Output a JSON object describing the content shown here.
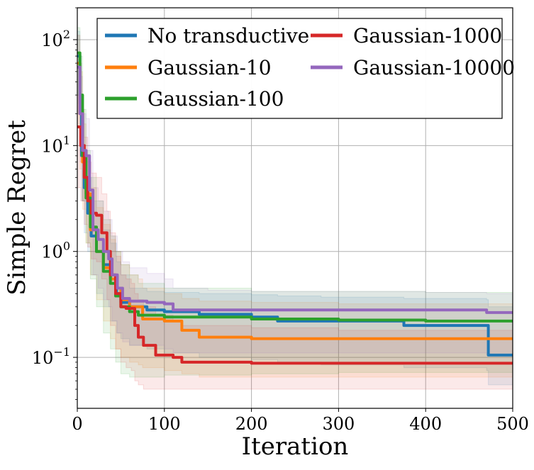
{
  "chart_data": {
    "type": "line",
    "xlabel": "Iteration",
    "ylabel": "Simple Regret",
    "xlim": [
      0,
      500
    ],
    "ylim": [
      0.033,
      200
    ],
    "yscale": "log",
    "grid": true,
    "legend": {
      "placement": "top-right",
      "columns": 2
    },
    "x_ticks": [
      {
        "value": 0,
        "label": "0"
      },
      {
        "value": 100,
        "label": "100"
      },
      {
        "value": 200,
        "label": "200"
      },
      {
        "value": 300,
        "label": "300"
      },
      {
        "value": 400,
        "label": "400"
      },
      {
        "value": 500,
        "label": "500"
      }
    ],
    "y_ticks": [
      {
        "value": 0.1,
        "base": "10",
        "exp": "−1"
      },
      {
        "value": 1,
        "base": "10",
        "exp": "0"
      },
      {
        "value": 10,
        "base": "10",
        "exp": "1"
      },
      {
        "value": 100,
        "base": "10",
        "exp": "2"
      }
    ],
    "series": [
      {
        "name": "No transductive",
        "color": "#1f77b4",
        "band_color": "#1f77b4",
        "x": [
          0,
          3,
          5,
          8,
          12,
          16,
          22,
          30,
          38,
          45,
          50,
          60,
          80,
          100,
          140,
          200,
          230,
          280,
          375,
          470,
          472,
          500
        ],
        "y": [
          70,
          25,
          8,
          4,
          2.3,
          1.4,
          1.0,
          0.75,
          0.55,
          0.4,
          0.33,
          0.3,
          0.28,
          0.27,
          0.255,
          0.24,
          0.22,
          0.22,
          0.2,
          0.2,
          0.105,
          0.105
        ],
        "lower": [
          20,
          8,
          3,
          1.5,
          1.0,
          0.6,
          0.4,
          0.3,
          0.22,
          0.17,
          0.15,
          0.13,
          0.12,
          0.11,
          0.1,
          0.095,
          0.09,
          0.085,
          0.08,
          0.075,
          0.055,
          0.055
        ],
        "upper": [
          120,
          60,
          20,
          9,
          5,
          3,
          2.2,
          1.6,
          1.2,
          0.8,
          0.6,
          0.45,
          0.42,
          0.41,
          0.4,
          0.39,
          0.38,
          0.37,
          0.36,
          0.35,
          0.3,
          0.3
        ]
      },
      {
        "name": "Gaussian-10",
        "color": "#ff7f0e",
        "band_color": "#ff7f0e",
        "x": [
          0,
          3,
          6,
          10,
          15,
          22,
          30,
          38,
          44,
          50,
          60,
          70,
          75,
          100,
          120,
          140,
          200,
          300,
          400,
          500
        ],
        "y": [
          60,
          20,
          7,
          3.5,
          1.6,
          1.0,
          0.7,
          0.55,
          0.45,
          0.35,
          0.3,
          0.3,
          0.23,
          0.22,
          0.18,
          0.155,
          0.15,
          0.15,
          0.15,
          0.15
        ],
        "lower": [
          15,
          6,
          2.5,
          1.2,
          0.6,
          0.35,
          0.22,
          0.15,
          0.12,
          0.1,
          0.09,
          0.085,
          0.08,
          0.075,
          0.07,
          0.065,
          0.065,
          0.065,
          0.065,
          0.065
        ],
        "upper": [
          110,
          50,
          16,
          8,
          4,
          2.6,
          1.8,
          1.3,
          1.0,
          0.75,
          0.6,
          0.55,
          0.45,
          0.4,
          0.36,
          0.34,
          0.33,
          0.32,
          0.32,
          0.32
        ]
      },
      {
        "name": "Gaussian-100",
        "color": "#2ca02c",
        "band_color": "#2ca02c",
        "x": [
          0,
          3,
          6,
          10,
          15,
          22,
          30,
          38,
          44,
          50,
          60,
          70,
          100,
          200,
          300,
          400,
          500
        ],
        "y": [
          75,
          30,
          8,
          3.2,
          1.7,
          1.0,
          0.65,
          0.5,
          0.38,
          0.3,
          0.27,
          0.25,
          0.24,
          0.23,
          0.225,
          0.22,
          0.22
        ],
        "lower": [
          30,
          10,
          3,
          1.2,
          0.55,
          0.3,
          0.17,
          0.12,
          0.09,
          0.07,
          0.065,
          0.065,
          0.068,
          0.07,
          0.072,
          0.072,
          0.072
        ],
        "upper": [
          130,
          70,
          22,
          9,
          5,
          3,
          2,
          1.4,
          1.0,
          0.75,
          0.6,
          0.5,
          0.45,
          0.42,
          0.42,
          0.41,
          0.41
        ]
      },
      {
        "name": "Gaussian-1000",
        "color": "#d62728",
        "band_color": "#d62728",
        "x": [
          0,
          4,
          8,
          12,
          16,
          22,
          28,
          34,
          38,
          44,
          50,
          56,
          62,
          66,
          70,
          76,
          90,
          110,
          120,
          200,
          300,
          400,
          500
        ],
        "y": [
          15,
          10,
          5,
          3.0,
          2.3,
          2.2,
          1.5,
          1.0,
          0.6,
          0.4,
          0.3,
          0.29,
          0.29,
          0.2,
          0.155,
          0.13,
          0.105,
          0.1,
          0.09,
          0.088,
          0.088,
          0.088,
          0.088
        ],
        "lower": [
          4,
          3,
          1.8,
          1.1,
          0.85,
          0.8,
          0.55,
          0.35,
          0.2,
          0.12,
          0.09,
          0.08,
          0.075,
          0.06,
          0.055,
          0.05,
          0.05,
          0.05,
          0.05,
          0.05,
          0.05,
          0.05,
          0.05
        ],
        "upper": [
          30,
          22,
          12,
          7,
          5.5,
          5,
          3.5,
          2.4,
          1.5,
          0.9,
          0.6,
          0.55,
          0.5,
          0.4,
          0.35,
          0.3,
          0.25,
          0.22,
          0.2,
          0.19,
          0.18,
          0.18,
          0.18
        ]
      },
      {
        "name": "Gaussian-10000",
        "color": "#9467bd",
        "band_color": "#9467bd",
        "x": [
          0,
          3,
          6,
          10,
          14,
          18,
          24,
          30,
          36,
          40,
          46,
          52,
          60,
          80,
          100,
          110,
          150,
          200,
          300,
          400,
          470,
          500
        ],
        "y": [
          55,
          20,
          9,
          8,
          3.8,
          1.6,
          1.3,
          1.0,
          0.85,
          0.6,
          0.45,
          0.36,
          0.34,
          0.33,
          0.32,
          0.28,
          0.28,
          0.28,
          0.28,
          0.28,
          0.265,
          0.265
        ],
        "lower": [
          20,
          7,
          3,
          2.8,
          1.4,
          0.6,
          0.45,
          0.35,
          0.3,
          0.22,
          0.17,
          0.14,
          0.13,
          0.13,
          0.12,
          0.11,
          0.11,
          0.11,
          0.11,
          0.11,
          0.105,
          0.105
        ],
        "upper": [
          110,
          45,
          20,
          18,
          9,
          4,
          3,
          2.4,
          2.0,
          1.4,
          1.0,
          0.8,
          0.7,
          0.62,
          0.55,
          0.45,
          0.43,
          0.42,
          0.42,
          0.41,
          0.4,
          0.4
        ]
      }
    ]
  }
}
